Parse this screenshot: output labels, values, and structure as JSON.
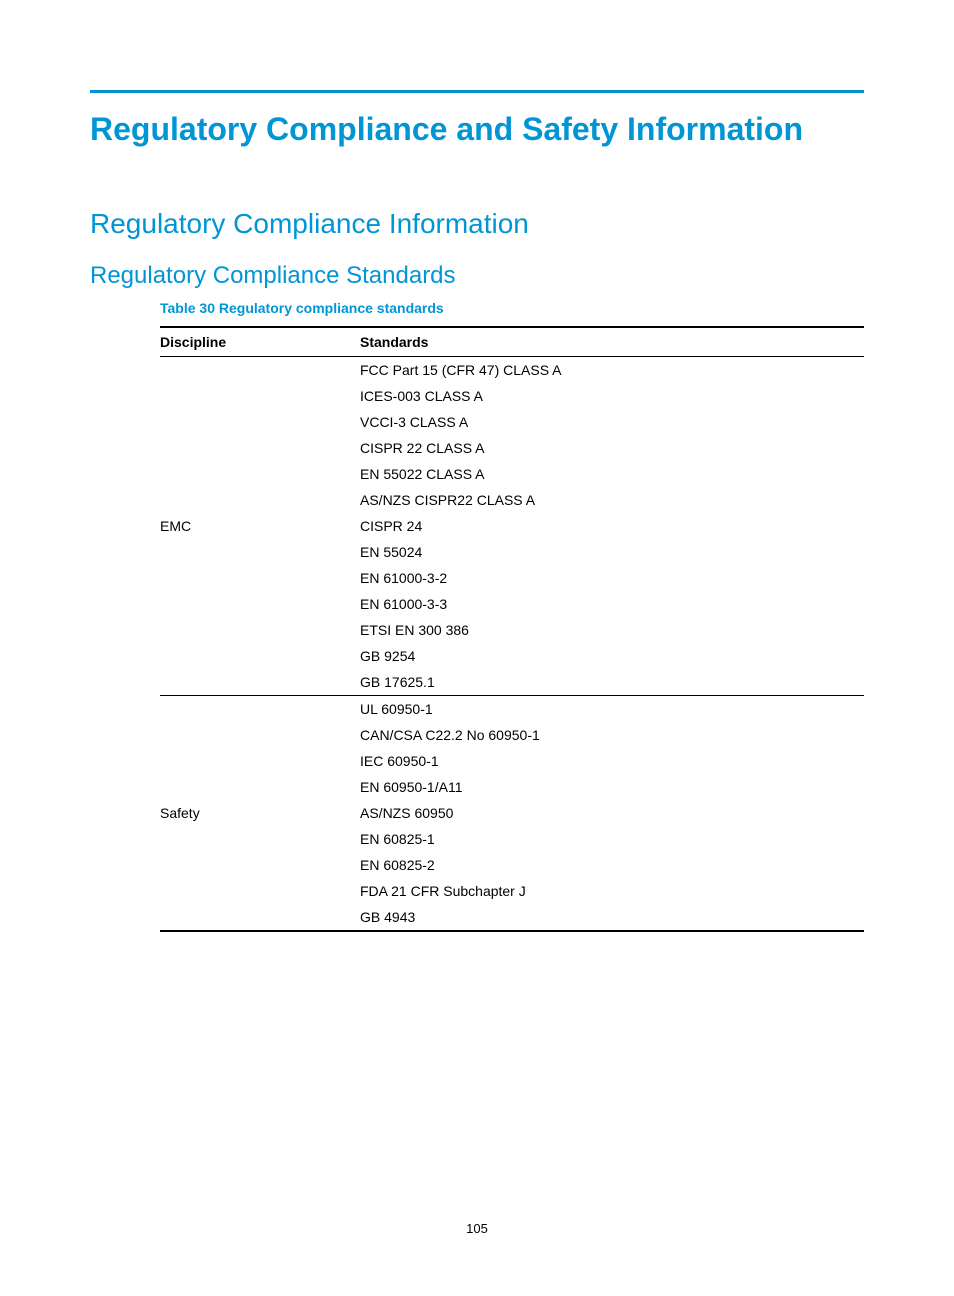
{
  "colors": {
    "accent": "#0096d6",
    "rule": "#000000",
    "background": "#ffffff",
    "text": "#000000"
  },
  "page_title": "Regulatory Compliance and Safety Information",
  "section_heading": "Regulatory Compliance Information",
  "subsection_heading": "Regulatory Compliance Standards",
  "table_caption": "Table 30 Regulatory compliance standards",
  "table": {
    "columns": [
      "Discipline",
      "Standards"
    ],
    "groups": [
      {
        "discipline": "EMC",
        "standards": [
          "FCC Part 15 (CFR 47) CLASS A",
          "ICES-003 CLASS A",
          "VCCI-3 CLASS A",
          "CISPR 22 CLASS A",
          "EN 55022 CLASS A",
          "AS/NZS CISPR22 CLASS A",
          "CISPR 24",
          "EN 55024",
          "EN 61000-3-2",
          "EN 61000-3-3",
          "ETSI EN 300 386",
          "GB 9254",
          "GB 17625.1"
        ]
      },
      {
        "discipline": "Safety",
        "standards": [
          "UL 60950-1",
          "CAN/CSA C22.2 No 60950-1",
          "IEC 60950-1",
          "EN 60950-1/A11",
          "AS/NZS 60950",
          "EN 60825-1",
          "EN 60825-2",
          "FDA 21 CFR  Subchapter J",
          "GB 4943"
        ]
      }
    ]
  },
  "page_number": "105"
}
